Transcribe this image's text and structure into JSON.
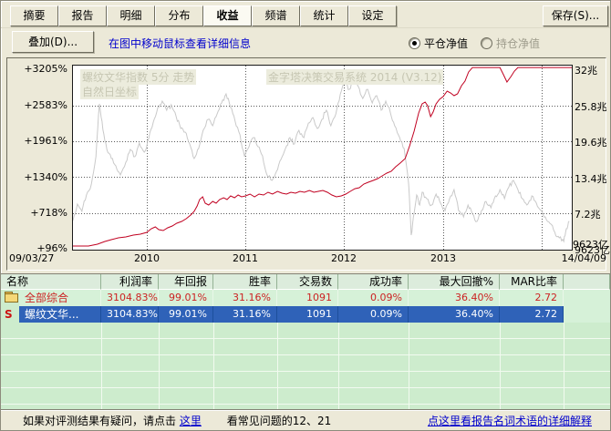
{
  "tabs": {
    "items": [
      "摘要",
      "报告",
      "明细",
      "分布",
      "收益",
      "频谱",
      "统计",
      "设定"
    ],
    "active_index": 4
  },
  "toolbar": {
    "save_label": "保存(S)...",
    "overlay_label": "叠加(D)...",
    "hint": "在图中移动鼠标查看详细信息",
    "radio_closed_label": "平仓净值",
    "radio_open_label": "持仓净值",
    "radio_selected": "平仓净值"
  },
  "chart_data": {
    "type": "line",
    "watermark_line1": "螺纹文华指数 5分 走势",
    "watermark_line2": "自然日坐标",
    "watermark_brand": "金字塔决策交易系统 2014 (V3.12)",
    "x_axis": {
      "labels": [
        "09/03/27",
        "2010",
        "2011",
        "2012",
        "2013",
        "14/04/09"
      ]
    },
    "left_axis": {
      "labels": [
        "+3205%",
        "+2583%",
        "+1961%",
        "+1340%",
        "+718%",
        "+96%"
      ],
      "min": 96,
      "max": 3205
    },
    "right_axis": {
      "labels": [
        "32兆",
        "25.8兆",
        "19.6兆",
        "13.4兆",
        "7.2兆",
        "9623亿"
      ],
      "min_zhao": 0.9623,
      "max_zhao": 32
    },
    "corner_label": "9623亿",
    "grid": true,
    "colors": {
      "index_line": "#c9c9c9",
      "equity_line": "#c00020"
    },
    "series": [
      {
        "name": "螺纹文华指数",
        "axis": "left",
        "unit": "percent",
        "points": [
          [
            0,
            585
          ],
          [
            0.009,
            869
          ],
          [
            0.018,
            743
          ],
          [
            0.027,
            1027
          ],
          [
            0.037,
            1216
          ],
          [
            0.046,
            1690
          ],
          [
            0.053,
            2605
          ],
          [
            0.06,
            2163
          ],
          [
            0.068,
            1816
          ],
          [
            0.077,
            1658
          ],
          [
            0.086,
            1532
          ],
          [
            0.095,
            1374
          ],
          [
            0.106,
            1595
          ],
          [
            0.115,
            1816
          ],
          [
            0.124,
            1690
          ],
          [
            0.133,
            1926
          ],
          [
            0.143,
            1769
          ],
          [
            0.152,
            2005
          ],
          [
            0.161,
            2289
          ],
          [
            0.17,
            2542
          ],
          [
            0.179,
            2652
          ],
          [
            0.188,
            2495
          ],
          [
            0.197,
            2589
          ],
          [
            0.207,
            2384
          ],
          [
            0.216,
            2179
          ],
          [
            0.225,
            2116
          ],
          [
            0.234,
            1911
          ],
          [
            0.243,
            1658
          ],
          [
            0.252,
            1832
          ],
          [
            0.261,
            2147
          ],
          [
            0.271,
            2337
          ],
          [
            0.28,
            2226
          ],
          [
            0.289,
            2431
          ],
          [
            0.298,
            2621
          ],
          [
            0.307,
            2778
          ],
          [
            0.316,
            2542
          ],
          [
            0.325,
            2305
          ],
          [
            0.335,
            2068
          ],
          [
            0.344,
            1690
          ],
          [
            0.353,
            1863
          ],
          [
            0.362,
            2021
          ],
          [
            0.371,
            1863
          ],
          [
            0.38,
            1705
          ],
          [
            0.389,
            1374
          ],
          [
            0.399,
            1279
          ],
          [
            0.408,
            1437
          ],
          [
            0.417,
            1642
          ],
          [
            0.426,
            1832
          ],
          [
            0.435,
            2021
          ],
          [
            0.444,
            1911
          ],
          [
            0.453,
            2147
          ],
          [
            0.463,
            2021
          ],
          [
            0.472,
            2274
          ],
          [
            0.481,
            2368
          ],
          [
            0.49,
            2179
          ],
          [
            0.499,
            2337
          ],
          [
            0.508,
            2495
          ],
          [
            0.517,
            2226
          ],
          [
            0.527,
            2431
          ],
          [
            0.536,
            2778
          ],
          [
            0.545,
            2968
          ],
          [
            0.554,
            2857
          ],
          [
            0.563,
            3015
          ],
          [
            0.572,
            2905
          ],
          [
            0.581,
            2699
          ],
          [
            0.591,
            2857
          ],
          [
            0.6,
            2621
          ],
          [
            0.609,
            2747
          ],
          [
            0.618,
            2495
          ],
          [
            0.627,
            2652
          ],
          [
            0.636,
            2463
          ],
          [
            0.645,
            2226
          ],
          [
            0.655,
            2021
          ],
          [
            0.664,
            1832
          ],
          [
            0.673,
            1216
          ],
          [
            0.678,
            333
          ],
          [
            0.684,
            711
          ],
          [
            0.689,
            1027
          ],
          [
            0.695,
            853
          ],
          [
            0.7,
            1074
          ],
          [
            0.709,
            964
          ],
          [
            0.719,
            853
          ],
          [
            0.728,
            1043
          ],
          [
            0.737,
            885
          ],
          [
            0.746,
            759
          ],
          [
            0.755,
            964
          ],
          [
            0.764,
            1121
          ],
          [
            0.773,
            759
          ],
          [
            0.783,
            648
          ],
          [
            0.792,
            853
          ],
          [
            0.801,
            695
          ],
          [
            0.81,
            569
          ],
          [
            0.819,
            759
          ],
          [
            0.828,
            917
          ],
          [
            0.838,
            806
          ],
          [
            0.847,
            1011
          ],
          [
            0.856,
            1121
          ],
          [
            0.865,
            964
          ],
          [
            0.874,
            1169
          ],
          [
            0.883,
            1279
          ],
          [
            0.892,
            1121
          ],
          [
            0.901,
            964
          ],
          [
            0.91,
            853
          ],
          [
            0.92,
            1011
          ],
          [
            0.929,
            885
          ],
          [
            0.938,
            759
          ],
          [
            0.947,
            648
          ],
          [
            0.956,
            538
          ],
          [
            0.966,
            380
          ],
          [
            0.975,
            285
          ],
          [
            0.984,
            222
          ],
          [
            0.989,
            443
          ],
          [
            0.995,
            569
          ]
        ]
      },
      {
        "name": "平仓净值",
        "axis": "right",
        "unit": "zhao",
        "points": [
          [
            0,
            0.96
          ],
          [
            0.031,
            0.96
          ],
          [
            0.049,
            1.28
          ],
          [
            0.064,
            1.75
          ],
          [
            0.077,
            2.07
          ],
          [
            0.091,
            2.39
          ],
          [
            0.106,
            2.55
          ],
          [
            0.121,
            2.86
          ],
          [
            0.135,
            3.02
          ],
          [
            0.148,
            3.34
          ],
          [
            0.157,
            3.97
          ],
          [
            0.165,
            4.29
          ],
          [
            0.172,
            3.81
          ],
          [
            0.181,
            3.65
          ],
          [
            0.19,
            4.13
          ],
          [
            0.199,
            4.45
          ],
          [
            0.208,
            4.92
          ],
          [
            0.218,
            5.24
          ],
          [
            0.227,
            5.71
          ],
          [
            0.236,
            6.35
          ],
          [
            0.243,
            6.98
          ],
          [
            0.249,
            7.93
          ],
          [
            0.254,
            9.04
          ],
          [
            0.26,
            9.51
          ],
          [
            0.265,
            8.4
          ],
          [
            0.272,
            8.09
          ],
          [
            0.28,
            8.72
          ],
          [
            0.287,
            8.4
          ],
          [
            0.294,
            9.04
          ],
          [
            0.302,
            9.35
          ],
          [
            0.309,
            9.04
          ],
          [
            0.316,
            9.67
          ],
          [
            0.324,
            9.35
          ],
          [
            0.331,
            9.83
          ],
          [
            0.338,
            9.51
          ],
          [
            0.346,
            9.67
          ],
          [
            0.355,
            9.99
          ],
          [
            0.364,
            9.51
          ],
          [
            0.373,
            9.99
          ],
          [
            0.382,
            9.83
          ],
          [
            0.391,
            10.3
          ],
          [
            0.4,
            9.99
          ],
          [
            0.41,
            10.46
          ],
          [
            0.419,
            10.14
          ],
          [
            0.428,
            9.99
          ],
          [
            0.437,
            10.3
          ],
          [
            0.446,
            10.14
          ],
          [
            0.455,
            10.46
          ],
          [
            0.464,
            10.3
          ],
          [
            0.474,
            10.62
          ],
          [
            0.483,
            10.3
          ],
          [
            0.492,
            10.46
          ],
          [
            0.501,
            10.62
          ],
          [
            0.51,
            10.3
          ],
          [
            0.519,
            9.83
          ],
          [
            0.528,
            9.51
          ],
          [
            0.538,
            9.67
          ],
          [
            0.547,
            9.99
          ],
          [
            0.556,
            10.46
          ],
          [
            0.565,
            10.93
          ],
          [
            0.574,
            11.09
          ],
          [
            0.583,
            11.73
          ],
          [
            0.592,
            12.04
          ],
          [
            0.602,
            12.36
          ],
          [
            0.611,
            12.68
          ],
          [
            0.62,
            13.15
          ],
          [
            0.629,
            13.63
          ],
          [
            0.638,
            13.94
          ],
          [
            0.647,
            14.74
          ],
          [
            0.656,
            15.37
          ],
          [
            0.666,
            16.16
          ],
          [
            0.675,
            18.38
          ],
          [
            0.684,
            20.91
          ],
          [
            0.693,
            24.08
          ],
          [
            0.7,
            25.66
          ],
          [
            0.706,
            25.98
          ],
          [
            0.711,
            25.35
          ],
          [
            0.717,
            23.45
          ],
          [
            0.722,
            24.24
          ],
          [
            0.728,
            25.66
          ],
          [
            0.735,
            26.45
          ],
          [
            0.742,
            26.93
          ],
          [
            0.75,
            27.88
          ],
          [
            0.757,
            27.56
          ],
          [
            0.764,
            27.09
          ],
          [
            0.771,
            27.4
          ],
          [
            0.779,
            28.83
          ],
          [
            0.786,
            29.62
          ],
          [
            0.793,
            31.2
          ],
          [
            0.801,
            31.99
          ],
          [
            0.835,
            31.99
          ],
          [
            0.856,
            31.99
          ],
          [
            0.863,
            30.73
          ],
          [
            0.87,
            29.46
          ],
          [
            0.878,
            30.41
          ],
          [
            0.885,
            31.36
          ],
          [
            0.892,
            31.99
          ],
          [
            0.95,
            31.99
          ],
          [
            1,
            31.99
          ]
        ]
      }
    ]
  },
  "table": {
    "columns": [
      "名称",
      "利润率",
      "年回报",
      "胜率",
      "交易数",
      "成功率",
      "最大回撤%",
      "MAR比率"
    ],
    "rows": [
      {
        "icon": "folder",
        "name": "全部综合",
        "selected": false,
        "values": [
          "3104.83%",
          "99.01%",
          "31.16%",
          "1091",
          "0.09%",
          "36.40%",
          "2.72"
        ]
      },
      {
        "icon": "S",
        "name": "螺纹文华...",
        "selected": true,
        "values": [
          "3104.83%",
          "99.01%",
          "31.16%",
          "1091",
          "0.09%",
          "36.40%",
          "2.72"
        ]
      }
    ]
  },
  "footer": {
    "question_text": "如果对评测结果有疑问，请点击",
    "here_link": "这里",
    "faq_text": "看常见问题的12、21",
    "glossary_link": "点这里看报告名词术语的详细解释"
  }
}
